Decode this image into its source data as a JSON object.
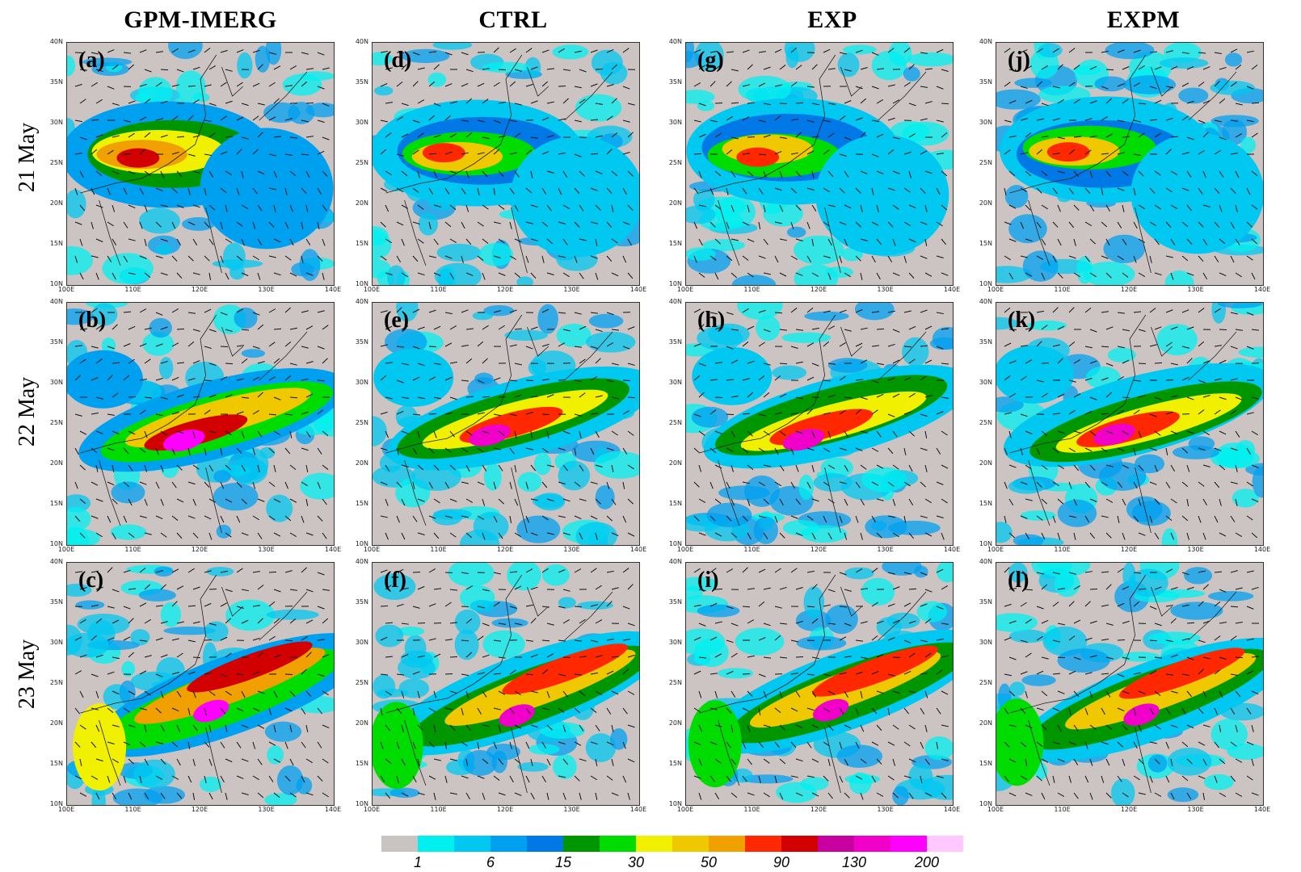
{
  "columns": [
    {
      "title": "GPM-IMERG",
      "panels": [
        "(a)",
        "(b)",
        "(c)"
      ]
    },
    {
      "title": "CTRL",
      "panels": [
        "(d)",
        "(e)",
        "(f)"
      ]
    },
    {
      "title": "EXP",
      "panels": [
        "(g)",
        "(h)",
        "(i)"
      ]
    },
    {
      "title": "EXPM",
      "panels": [
        "(j)",
        "(k)",
        "(l)"
      ]
    }
  ],
  "rows": [
    "21 May",
    "22 May",
    "23 May"
  ],
  "lat_ticks": [
    "40N",
    "35N",
    "30N",
    "25N",
    "20N",
    "15N",
    "10N"
  ],
  "lon_ticks": [
    "100E",
    "110E",
    "120E",
    "130E",
    "140E"
  ],
  "colorbar": {
    "colors": [
      "#c9c3c1",
      "#00f0f0",
      "#00c8f0",
      "#00a0f0",
      "#0078e6",
      "#009600",
      "#00dc00",
      "#f0f000",
      "#f0c800",
      "#f0a000",
      "#ff2800",
      "#d20000",
      "#c800a0",
      "#f000c8",
      "#ff00ff",
      "#ffc8ff"
    ],
    "labels": [
      "1",
      "6",
      "15",
      "30",
      "50",
      "90",
      "130",
      "200"
    ]
  }
}
